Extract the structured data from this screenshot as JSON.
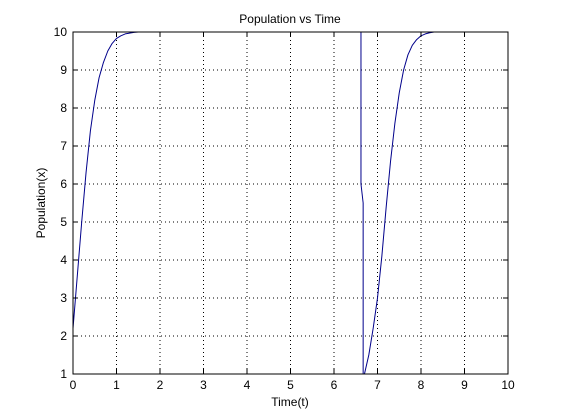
{
  "chart_data": {
    "type": "line",
    "title": "Population vs Time",
    "xlabel": "Time(t)",
    "ylabel": "Population(x)",
    "xlim": [
      0,
      10
    ],
    "ylim": [
      1,
      10
    ],
    "xticks": [
      0,
      1,
      2,
      3,
      4,
      5,
      6,
      7,
      8,
      9,
      10
    ],
    "yticks": [
      1,
      2,
      3,
      4,
      5,
      6,
      7,
      8,
      9,
      10
    ],
    "grid": true,
    "grid_style": "dotted",
    "line_color": "#00008b",
    "series": [
      {
        "x": [
          0,
          0.1,
          0.2,
          0.3,
          0.4,
          0.5,
          0.6,
          0.7,
          0.8,
          0.9,
          1.0,
          1.1,
          1.2,
          1.3,
          1.4,
          1.5,
          1.6,
          6.62,
          6.62,
          6.67,
          6.67,
          6.7,
          6.8,
          6.9,
          7.0,
          7.1,
          7.2,
          7.3,
          7.4,
          7.5,
          7.6,
          7.7,
          7.8,
          7.9,
          8.0,
          8.1,
          8.2,
          8.3,
          8.5,
          10
        ],
        "y": [
          2.2,
          3.6,
          5.0,
          6.3,
          7.4,
          8.2,
          8.8,
          9.2,
          9.5,
          9.7,
          9.83,
          9.9,
          9.95,
          9.97,
          9.99,
          10.0,
          10.0,
          10.0,
          6.0,
          5.5,
          1.0,
          1.0,
          1.5,
          2.2,
          3.0,
          4.1,
          5.4,
          6.6,
          7.6,
          8.4,
          9.0,
          9.4,
          9.65,
          9.8,
          9.9,
          9.95,
          9.98,
          10.0,
          10.0,
          10.0
        ]
      }
    ]
  }
}
